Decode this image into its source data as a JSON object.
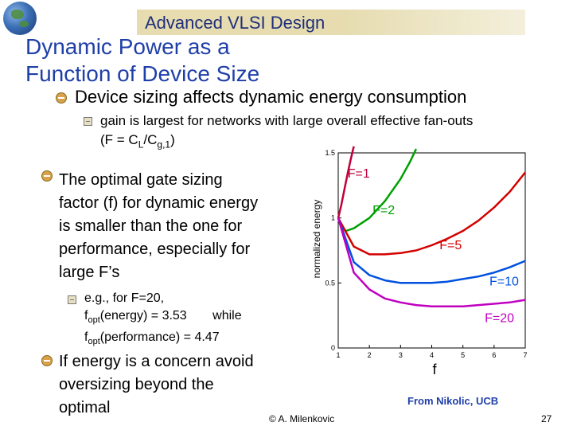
{
  "header": {
    "course_title": "Advanced VLSI Design",
    "slide_title_line1": "Dynamic Power as a",
    "slide_title_line2": "Function of Device Size"
  },
  "bullets": {
    "b1": "Device sizing affects dynamic energy consumption",
    "b1_sub_line1": "gain is largest for networks with large overall effective fan-outs",
    "b1_sub_line2_pre": "(F = C",
    "b1_sub_sub1": "L",
    "b1_sub_mid": "/C",
    "b1_sub_sub2": "g,1",
    "b1_sub_line2_post": ")",
    "b2_line1": "The optimal gate sizing",
    "b2_line2": "factor (f) for dynamic energy",
    "b2_line3": "is smaller than the one for",
    "b2_line4": "performance, especially for",
    "b2_line5": "large F’s",
    "b2_sub_line1": "e.g., for F=20,",
    "b2_sub_f1": "f",
    "b2_sub_opt1": "opt",
    "b2_sub_val1": "(energy) = 3.53",
    "b2_sub_while": "while",
    "b2_sub_f2": "f",
    "b2_sub_opt2": "opt",
    "b2_sub_val2": "(performance) = 4.47",
    "b3_line1": "If energy is a concern avoid",
    "b3_line2": "oversizing beyond the",
    "b3_line3": "optimal"
  },
  "footer": {
    "author": "© A. Milenkovic",
    "page_number": "27",
    "credit": "From Nikolic, UCB"
  },
  "chart_data": {
    "type": "line",
    "xlabel": "f",
    "ylabel": "normalized energy",
    "xlim": [
      1,
      7
    ],
    "ylim": [
      0,
      1.5
    ],
    "x_ticks": [
      "1",
      "2",
      "3",
      "4",
      "5",
      "6",
      "7"
    ],
    "y_ticks": [
      "0",
      "0.5",
      "1",
      "1.5"
    ],
    "series": [
      {
        "name": "F=1",
        "color": "#c0003a",
        "x": [
          1.0,
          1.1,
          1.2,
          1.3,
          1.4,
          1.5
        ],
        "y": [
          1.0,
          1.1,
          1.22,
          1.34,
          1.45,
          1.55
        ]
      },
      {
        "name": "F=2",
        "color": "#00a000",
        "x": [
          1.0,
          1.1,
          1.25,
          1.5,
          2.0,
          2.5,
          3.0,
          3.3,
          3.5
        ],
        "y": [
          1.0,
          0.93,
          0.9,
          0.92,
          1.0,
          1.13,
          1.3,
          1.43,
          1.53
        ]
      },
      {
        "name": "F=5",
        "color": "#d40000",
        "x": [
          1.0,
          1.5,
          2.0,
          2.5,
          3.0,
          3.5,
          4.0,
          4.5,
          5.0,
          5.5,
          6.0,
          6.5,
          7.0
        ],
        "y": [
          1.0,
          0.78,
          0.72,
          0.72,
          0.73,
          0.75,
          0.79,
          0.84,
          0.9,
          0.98,
          1.08,
          1.2,
          1.35
        ]
      },
      {
        "name": "F=10",
        "color": "#0050e0",
        "x": [
          1.0,
          1.5,
          2.0,
          2.5,
          3.0,
          3.5,
          4.0,
          4.5,
          5.0,
          5.5,
          6.0,
          6.5,
          7.0
        ],
        "y": [
          1.0,
          0.66,
          0.56,
          0.52,
          0.5,
          0.5,
          0.5,
          0.51,
          0.53,
          0.55,
          0.58,
          0.62,
          0.67
        ]
      },
      {
        "name": "F=20",
        "color": "#c000c0",
        "x": [
          1.0,
          1.5,
          2.0,
          2.5,
          3.0,
          3.5,
          4.0,
          4.5,
          5.0,
          5.5,
          6.0,
          6.5,
          7.0
        ],
        "y": [
          1.0,
          0.58,
          0.45,
          0.38,
          0.35,
          0.33,
          0.32,
          0.32,
          0.32,
          0.33,
          0.34,
          0.35,
          0.37
        ]
      }
    ],
    "annotations": [
      {
        "text": "F=1",
        "color": "#c0003a"
      },
      {
        "text": "F=2",
        "color": "#00a000"
      },
      {
        "text": "F=5",
        "color": "#d40000"
      },
      {
        "text": "F=10",
        "color": "#0050e0"
      },
      {
        "text": "F=20",
        "color": "#c000c0"
      }
    ],
    "grid": false,
    "legend": "none"
  }
}
